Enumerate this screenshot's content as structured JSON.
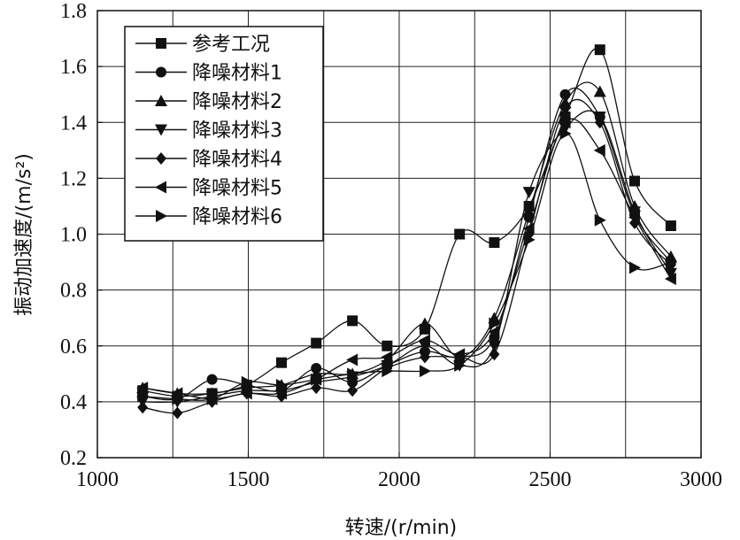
{
  "chart_data": {
    "type": "line",
    "xlabel": "转速/(r/min)",
    "ylabel": "振动加速度/(m/s²)",
    "xlim": [
      1000,
      3000
    ],
    "ylim": [
      0.2,
      1.8
    ],
    "xticks": [
      1000,
      1500,
      2000,
      2500,
      3000
    ],
    "yticks": [
      0.2,
      0.4,
      0.6,
      0.8,
      1.0,
      1.2,
      1.4,
      1.6,
      1.8
    ],
    "ytick_labels": [
      "0.2",
      "0.4",
      "0.6",
      "0.8",
      "1.0",
      "1.2",
      "1.4",
      "1.6",
      "1.8"
    ],
    "grid": true,
    "legend_position": "top-left",
    "x": [
      1150,
      1265,
      1380,
      1495,
      1610,
      1725,
      1845,
      1960,
      2085,
      2200,
      2315,
      2430,
      2550,
      2665,
      2780,
      2900
    ],
    "series": [
      {
        "name": "参考工况",
        "marker": "square",
        "values": [
          0.44,
          0.42,
          0.43,
          0.46,
          0.54,
          0.61,
          0.69,
          0.6,
          0.66,
          1.0,
          0.97,
          1.1,
          1.42,
          1.66,
          1.19,
          1.03
        ]
      },
      {
        "name": "降噪材料1",
        "marker": "circle",
        "values": [
          0.42,
          0.41,
          0.48,
          0.46,
          0.44,
          0.52,
          0.47,
          0.53,
          0.58,
          0.56,
          0.63,
          1.06,
          1.5,
          1.42,
          1.07,
          0.9
        ]
      },
      {
        "name": "降噪材料2",
        "marker": "triangle-up",
        "values": [
          0.45,
          0.43,
          0.43,
          0.45,
          0.46,
          0.5,
          0.5,
          0.55,
          0.68,
          0.56,
          0.7,
          1.08,
          1.47,
          1.51,
          1.1,
          0.92
        ]
      },
      {
        "name": "降噪材料3",
        "marker": "triangle-down",
        "values": [
          0.4,
          0.4,
          0.42,
          0.44,
          0.44,
          0.47,
          0.49,
          0.53,
          0.6,
          0.53,
          0.6,
          1.15,
          1.38,
          1.42,
          1.08,
          0.86
        ]
      },
      {
        "name": "降噪材料4",
        "marker": "diamond",
        "values": [
          0.38,
          0.36,
          0.4,
          0.43,
          0.42,
          0.45,
          0.44,
          0.52,
          0.56,
          0.56,
          0.57,
          1.0,
          1.45,
          1.4,
          1.04,
          0.89
        ]
      },
      {
        "name": "降噪材料5",
        "marker": "triangle-left",
        "values": [
          0.45,
          0.43,
          0.41,
          0.43,
          0.43,
          0.48,
          0.55,
          0.56,
          0.62,
          0.57,
          0.65,
          1.02,
          1.4,
          1.3,
          1.06,
          0.84
        ]
      },
      {
        "name": "降噪材料6",
        "marker": "triangle-right",
        "values": [
          0.42,
          0.41,
          0.41,
          0.47,
          0.46,
          0.48,
          0.5,
          0.51,
          0.51,
          0.53,
          0.68,
          0.98,
          1.36,
          1.05,
          0.88,
          0.9
        ]
      }
    ]
  }
}
